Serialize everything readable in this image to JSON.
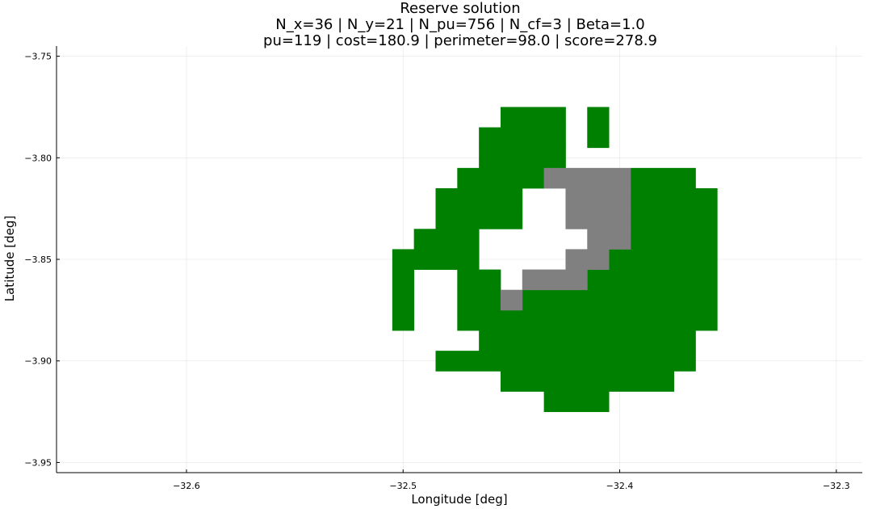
{
  "chart_data": {
    "type": "heatmap",
    "title": "Reserve solution",
    "subtitle_lines": [
      "N_x=36 | N_y=21 | N_pu=756 | N_cf=3 | Beta=1.0",
      "pu=119 | cost=180.9 | perimeter=98.0 | score=278.9"
    ],
    "xlabel": "Longitude [deg]",
    "ylabel": "Latitude [deg]",
    "xlim": [
      -32.66,
      -32.288
    ],
    "ylim": [
      -3.955,
      -3.745
    ],
    "x_ticks": [
      -32.6,
      -32.5,
      -32.4,
      -32.3
    ],
    "x_tick_labels": [
      "−32.6",
      "−32.5",
      "−32.4",
      "−32.3"
    ],
    "y_ticks": [
      -3.75,
      -3.8,
      -3.85,
      -3.9,
      -3.95
    ],
    "y_tick_labels": [
      "−3.75",
      "−3.80",
      "−3.85",
      "−3.90",
      "−3.95"
    ],
    "grid": true,
    "legend": "none",
    "cell_width_deg": 0.01,
    "cell_height_deg": 0.01,
    "colors": {
      "selected": "#008000",
      "locked": "#808080"
    },
    "selected_rows": [
      {
        "lat": -3.78,
        "lon_ranges": [
          [
            -32.455,
            -32.425
          ],
          [
            -32.415,
            -32.405
          ]
        ]
      },
      {
        "lat": -3.79,
        "lon_ranges": [
          [
            -32.465,
            -32.425
          ],
          [
            -32.415,
            -32.405
          ]
        ]
      },
      {
        "lat": -3.8,
        "lon_ranges": [
          [
            -32.465,
            -32.425
          ]
        ]
      },
      {
        "lat": -3.81,
        "lon_ranges": [
          [
            -32.475,
            -32.435
          ],
          [
            -32.395,
            -32.365
          ]
        ]
      },
      {
        "lat": -3.82,
        "lon_ranges": [
          [
            -32.485,
            -32.445
          ],
          [
            -32.395,
            -32.355
          ]
        ]
      },
      {
        "lat": -3.83,
        "lon_ranges": [
          [
            -32.485,
            -32.445
          ],
          [
            -32.395,
            -32.355
          ]
        ]
      },
      {
        "lat": -3.84,
        "lon_ranges": [
          [
            -32.495,
            -32.465
          ],
          [
            -32.395,
            -32.355
          ]
        ]
      },
      {
        "lat": -3.85,
        "lon_ranges": [
          [
            -32.505,
            -32.465
          ],
          [
            -32.405,
            -32.355
          ]
        ]
      },
      {
        "lat": -3.86,
        "lon_ranges": [
          [
            -32.505,
            -32.495
          ],
          [
            -32.475,
            -32.455
          ],
          [
            -32.415,
            -32.355
          ]
        ]
      },
      {
        "lat": -3.87,
        "lon_ranges": [
          [
            -32.505,
            -32.495
          ],
          [
            -32.475,
            -32.455
          ],
          [
            -32.445,
            -32.355
          ]
        ]
      },
      {
        "lat": -3.88,
        "lon_ranges": [
          [
            -32.505,
            -32.495
          ],
          [
            -32.475,
            -32.355
          ]
        ]
      },
      {
        "lat": -3.89,
        "lon_ranges": [
          [
            -32.465,
            -32.365
          ]
        ]
      },
      {
        "lat": -3.9,
        "lon_ranges": [
          [
            -32.485,
            -32.365
          ]
        ]
      },
      {
        "lat": -3.91,
        "lon_ranges": [
          [
            -32.455,
            -32.375
          ]
        ]
      },
      {
        "lat": -3.92,
        "lon_ranges": [
          [
            -32.435,
            -32.405
          ]
        ]
      }
    ],
    "locked_rows": [
      {
        "lat": -3.81,
        "lon_ranges": [
          [
            -32.435,
            -32.395
          ]
        ]
      },
      {
        "lat": -3.82,
        "lon_ranges": [
          [
            -32.425,
            -32.395
          ]
        ]
      },
      {
        "lat": -3.83,
        "lon_ranges": [
          [
            -32.425,
            -32.395
          ]
        ]
      },
      {
        "lat": -3.84,
        "lon_ranges": [
          [
            -32.415,
            -32.395
          ]
        ]
      },
      {
        "lat": -3.85,
        "lon_ranges": [
          [
            -32.425,
            -32.405
          ]
        ]
      },
      {
        "lat": -3.86,
        "lon_ranges": [
          [
            -32.445,
            -32.415
          ]
        ]
      },
      {
        "lat": -3.87,
        "lon_ranges": [
          [
            -32.455,
            -32.445
          ]
        ]
      }
    ]
  }
}
